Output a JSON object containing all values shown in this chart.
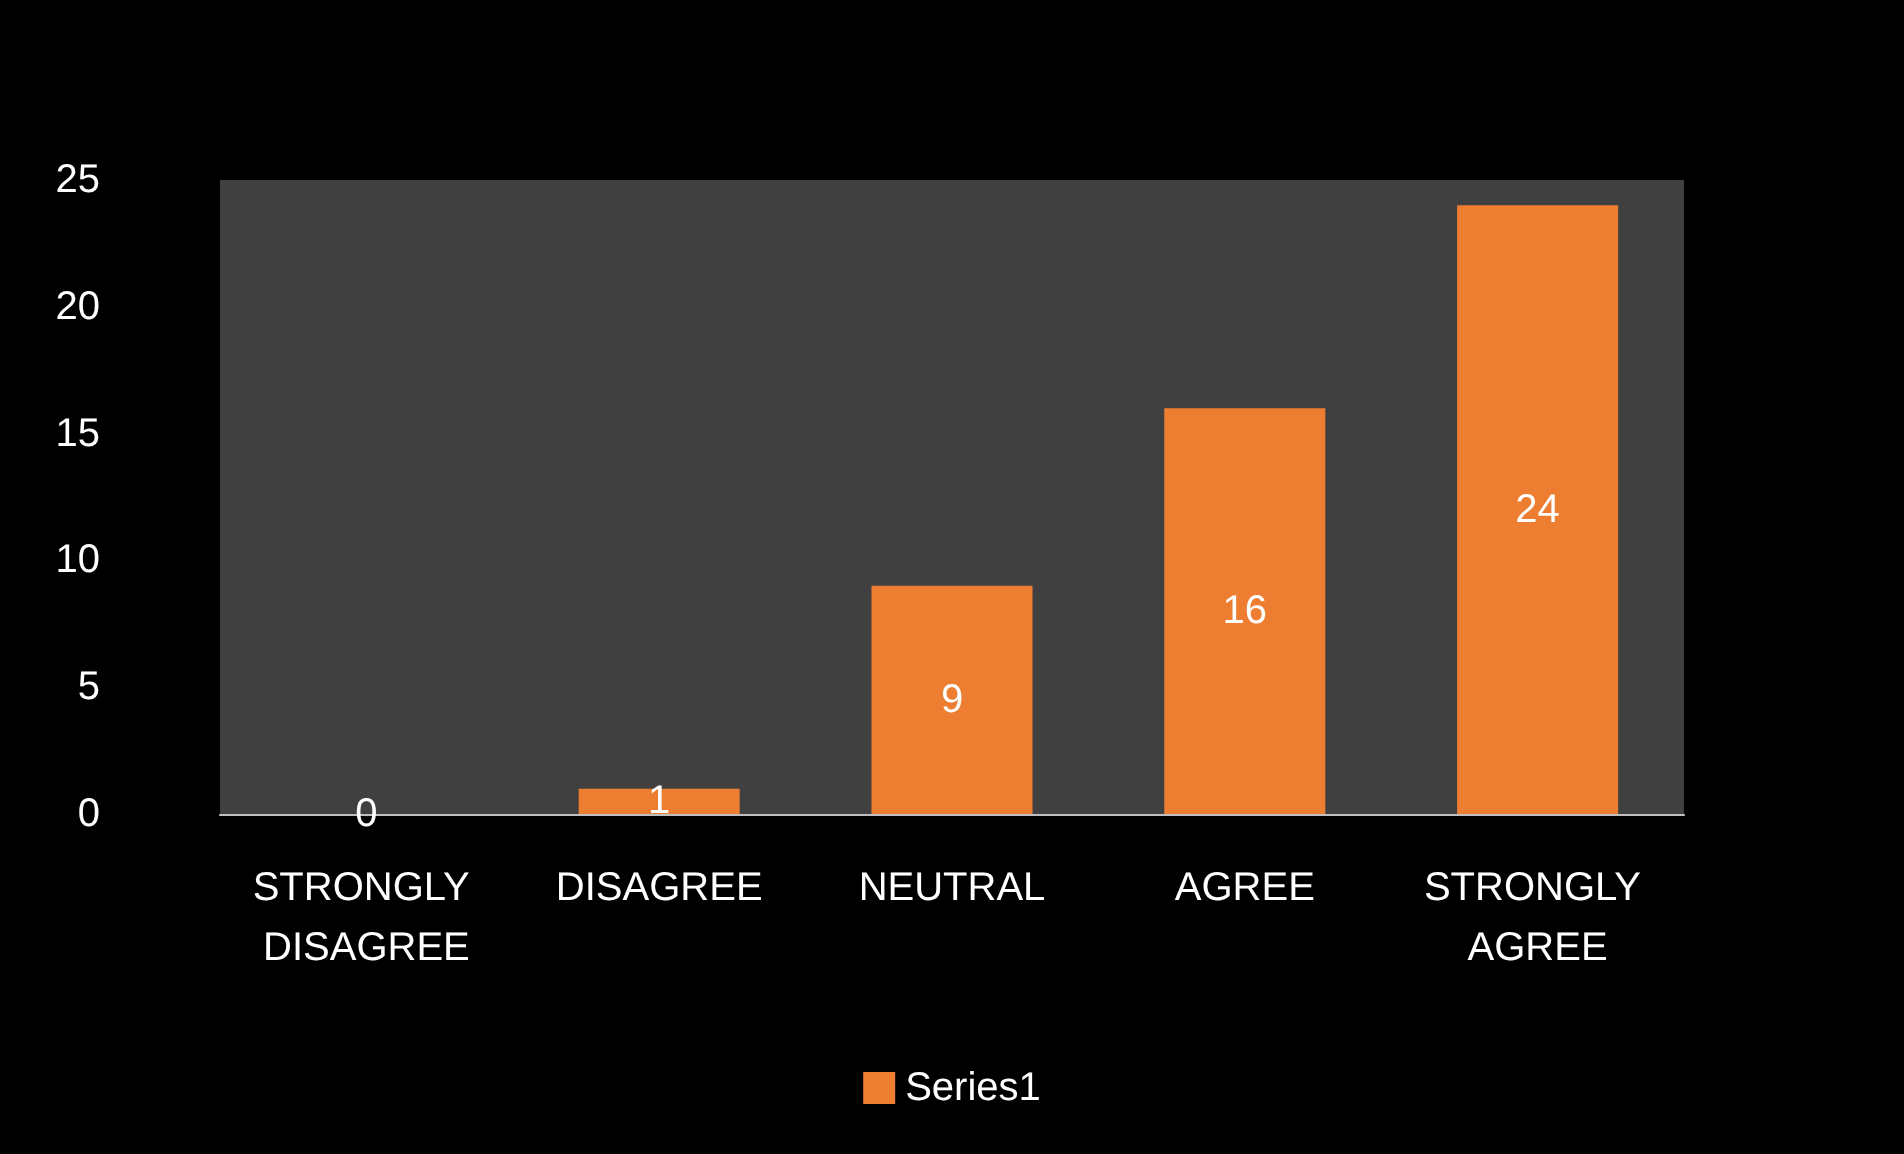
{
  "chart_data": {
    "type": "bar",
    "categories": [
      "STRONGLY DISAGREE",
      "DISAGREE",
      "NEUTRAL",
      "AGREE",
      "STRONGLY AGREE"
    ],
    "series": [
      {
        "name": "Series1",
        "color": "#ed7d31",
        "values": [
          0,
          1,
          9,
          16,
          24
        ]
      }
    ],
    "ylim": [
      0,
      25
    ],
    "yticks": [
      0,
      5,
      10,
      15,
      20,
      25
    ],
    "grid": false,
    "legend": "bottom",
    "data_labels": true
  }
}
